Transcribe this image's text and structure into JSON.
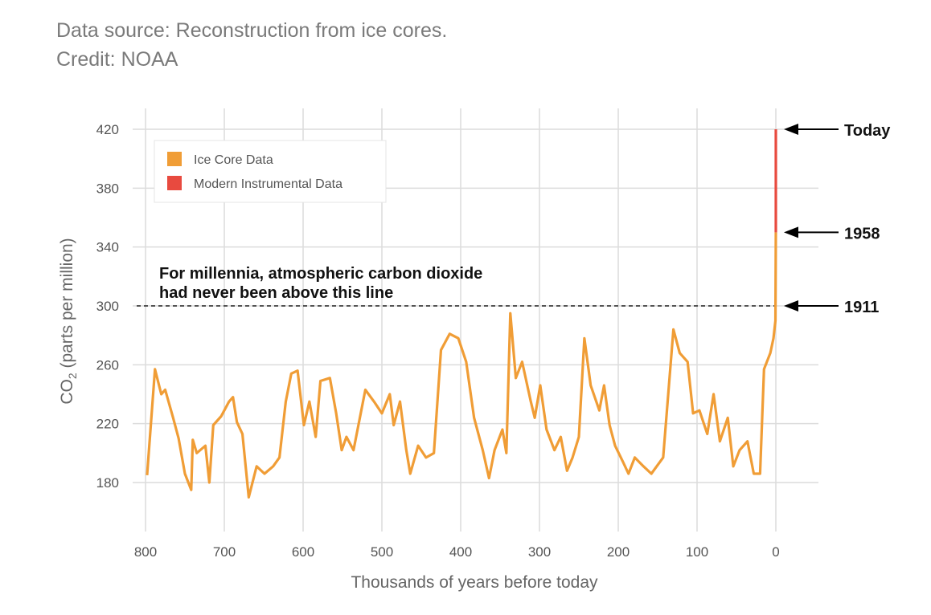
{
  "source_line": "Data source: Reconstruction from ice cores.",
  "credit_line": "Credit: NOAA",
  "chart_data": {
    "type": "line",
    "title": "",
    "xlabel": "Thousands of years before today",
    "ylabel_prefix": "CO",
    "ylabel_sub": "2",
    "ylabel_suffix": " (parts per million)",
    "xlim": [
      800,
      0
    ],
    "ylim": [
      180,
      420
    ],
    "xticks": [
      800,
      700,
      600,
      500,
      400,
      300,
      200,
      100,
      0
    ],
    "yticks": [
      180,
      220,
      260,
      300,
      340,
      380,
      420
    ],
    "grid": true,
    "legend_position": "top-left",
    "colors": {
      "ice": "#f09d36",
      "modern": "#e84a3f"
    },
    "threshold": {
      "value": 300,
      "text_line1": "For millennia, atmospheric carbon dioxide",
      "text_line2": "had never been above this line"
    },
    "annotations": [
      {
        "label": "Today",
        "y": 420
      },
      {
        "label": "1958",
        "y": 350
      },
      {
        "label": "1911",
        "y": 300
      }
    ],
    "series": [
      {
        "name": "Ice Core Data",
        "color": "#f09d36",
        "points": [
          [
            798,
            185
          ],
          [
            788,
            257
          ],
          [
            780,
            240
          ],
          [
            775,
            243
          ],
          [
            765,
            224
          ],
          [
            758,
            210
          ],
          [
            750,
            186
          ],
          [
            742,
            175
          ],
          [
            740,
            209
          ],
          [
            735,
            200
          ],
          [
            724,
            205
          ],
          [
            719,
            180
          ],
          [
            714,
            219
          ],
          [
            704,
            225
          ],
          [
            694,
            235
          ],
          [
            689,
            238
          ],
          [
            684,
            221
          ],
          [
            677,
            213
          ],
          [
            669,
            170
          ],
          [
            659,
            191
          ],
          [
            649,
            186
          ],
          [
            638,
            191
          ],
          [
            630,
            197
          ],
          [
            622,
            235
          ],
          [
            615,
            254
          ],
          [
            607,
            256
          ],
          [
            599,
            219
          ],
          [
            592,
            235
          ],
          [
            584,
            211
          ],
          [
            578,
            249
          ],
          [
            566,
            251
          ],
          [
            558,
            227
          ],
          [
            551,
            202
          ],
          [
            545,
            211
          ],
          [
            536,
            202
          ],
          [
            521,
            243
          ],
          [
            510,
            235
          ],
          [
            500,
            227
          ],
          [
            490,
            240
          ],
          [
            485,
            219
          ],
          [
            477,
            235
          ],
          [
            469,
            202
          ],
          [
            464,
            186
          ],
          [
            454,
            205
          ],
          [
            444,
            197
          ],
          [
            434,
            200
          ],
          [
            425,
            270
          ],
          [
            414,
            281
          ],
          [
            403,
            278
          ],
          [
            393,
            262
          ],
          [
            383,
            224
          ],
          [
            372,
            202
          ],
          [
            364,
            183
          ],
          [
            357,
            202
          ],
          [
            347,
            216
          ],
          [
            342,
            200
          ],
          [
            337,
            295
          ],
          [
            330,
            251
          ],
          [
            322,
            262
          ],
          [
            311,
            235
          ],
          [
            306,
            224
          ],
          [
            299,
            246
          ],
          [
            291,
            216
          ],
          [
            281,
            202
          ],
          [
            273,
            211
          ],
          [
            265,
            188
          ],
          [
            258,
            197
          ],
          [
            250,
            211
          ],
          [
            243,
            278
          ],
          [
            235,
            246
          ],
          [
            224,
            229
          ],
          [
            218,
            246
          ],
          [
            211,
            219
          ],
          [
            204,
            205
          ],
          [
            194,
            194
          ],
          [
            187,
            186
          ],
          [
            179,
            197
          ],
          [
            168,
            191
          ],
          [
            158,
            186
          ],
          [
            143,
            197
          ],
          [
            130,
            284
          ],
          [
            122,
            268
          ],
          [
            112,
            262
          ],
          [
            105,
            227
          ],
          [
            97,
            229
          ],
          [
            87,
            213
          ],
          [
            79,
            240
          ],
          [
            71,
            208
          ],
          [
            61,
            224
          ],
          [
            54,
            191
          ],
          [
            46,
            202
          ],
          [
            36,
            208
          ],
          [
            28,
            186
          ],
          [
            20,
            186
          ],
          [
            15,
            257
          ],
          [
            7,
            268
          ],
          [
            3,
            278
          ],
          [
            0.5,
            290
          ],
          [
            0,
            350
          ]
        ]
      },
      {
        "name": "Modern Instrumental Data",
        "color": "#e84a3f",
        "points": [
          [
            0,
            350
          ],
          [
            0,
            420
          ]
        ]
      }
    ]
  }
}
